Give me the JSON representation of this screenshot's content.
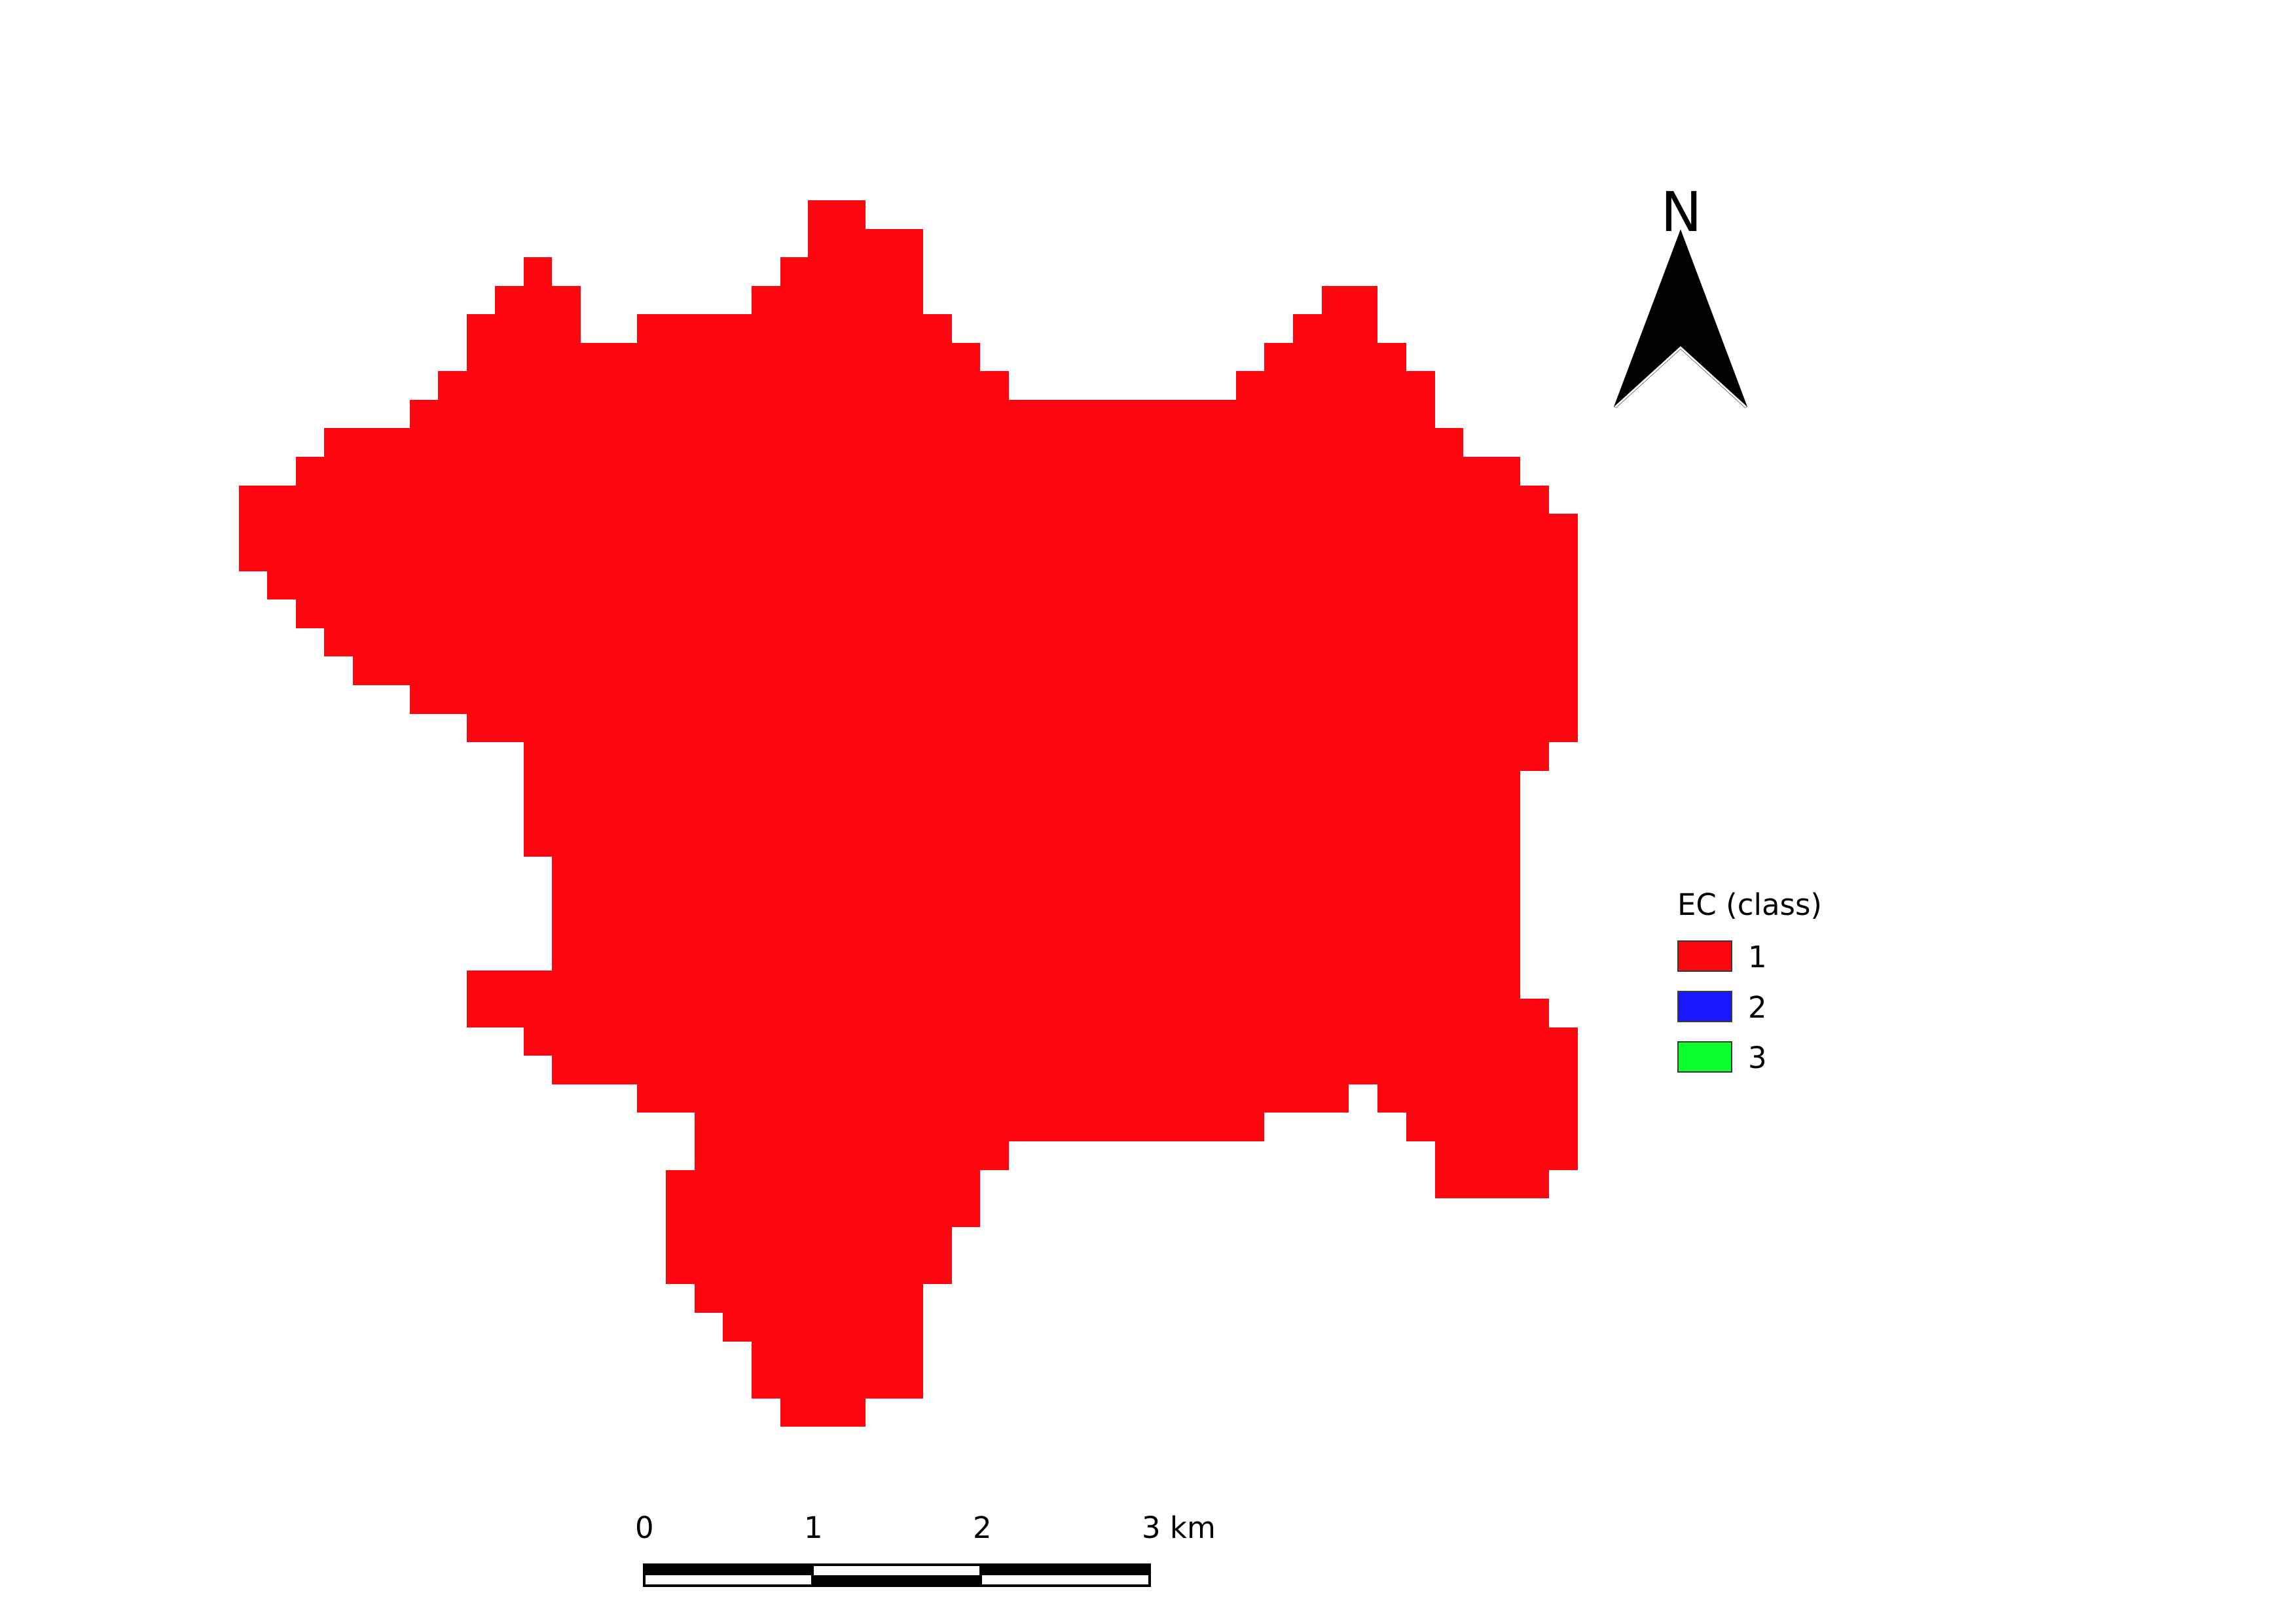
{
  "map": {
    "north_arrow": {
      "label": "N",
      "icon": "north-arrow-icon"
    },
    "legend": {
      "title": "EC (class)",
      "items": [
        {
          "label": "1",
          "color": "#ff0510"
        },
        {
          "label": "2",
          "color": "#1a18ff"
        },
        {
          "label": "3",
          "color": "#0dff2e"
        }
      ]
    },
    "scale_bar": {
      "ticks": [
        "0",
        "1",
        "2",
        "3 km"
      ]
    },
    "region": {
      "class": "1",
      "color": "#ff0510"
    }
  }
}
